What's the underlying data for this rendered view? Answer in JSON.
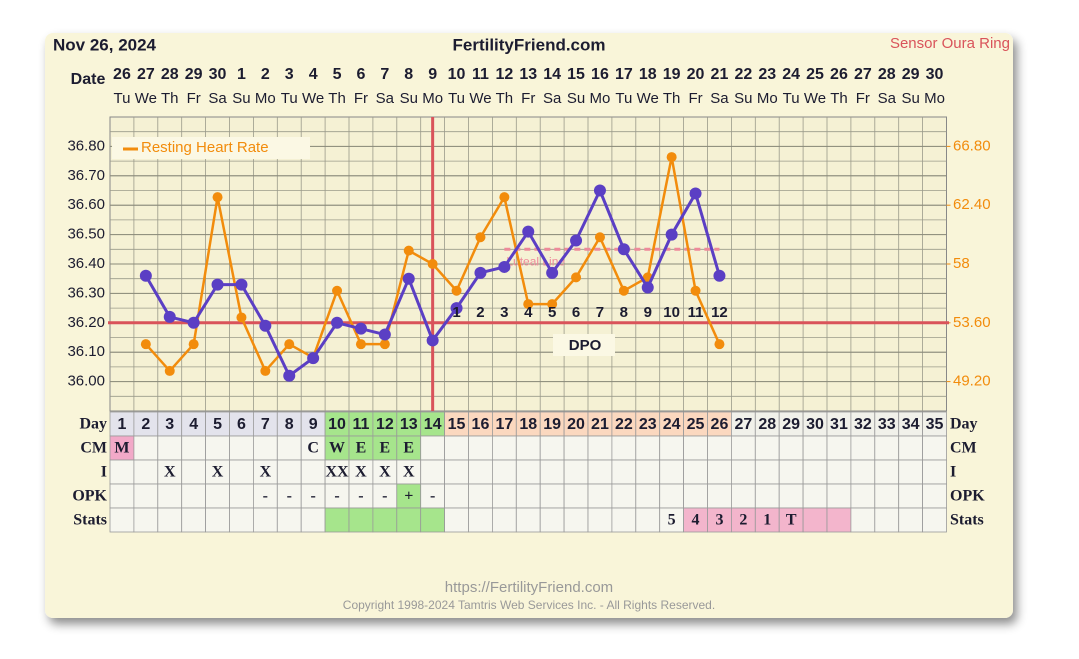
{
  "header": {
    "date": "Nov 26, 2024",
    "sensor": "Sensor Oura Ring"
  },
  "chart_data": {
    "type": "line",
    "title": "FertilityFriend.com",
    "x_label": "Date",
    "dates": [
      26,
      27,
      28,
      29,
      30,
      1,
      2,
      3,
      4,
      5,
      6,
      7,
      8,
      9,
      10,
      11,
      12,
      13,
      14,
      15,
      16,
      17,
      18,
      19,
      20,
      21,
      22,
      23,
      24,
      25,
      26,
      27,
      28,
      29,
      30
    ],
    "weekdays": [
      "Tu",
      "We",
      "Th",
      "Fr",
      "Sa",
      "Su",
      "Mo",
      "Tu",
      "We",
      "Th",
      "Fr",
      "Sa",
      "Su",
      "Mo",
      "Tu",
      "We",
      "Th",
      "Fr",
      "Sa",
      "Su",
      "Mo",
      "Tu",
      "We",
      "Th",
      "Fr",
      "Sa",
      "Su",
      "Mo",
      "Tu",
      "We",
      "Th",
      "Fr",
      "Sa",
      "Su",
      "Mo"
    ],
    "ylim": [
      35.9,
      36.9
    ],
    "yticks": [
      {
        "value": 36.0,
        "label": "36.00"
      },
      {
        "value": 36.1,
        "label": "36.10"
      },
      {
        "value": 36.2,
        "label": "36.20"
      },
      {
        "value": 36.3,
        "label": "36.30"
      },
      {
        "value": 36.4,
        "label": "36.40"
      },
      {
        "value": 36.5,
        "label": "36.50"
      },
      {
        "value": 36.6,
        "label": "36.60"
      },
      {
        "value": 36.7,
        "label": "36.70"
      },
      {
        "value": 36.8,
        "label": "36.80"
      }
    ],
    "y2lim": [
      47,
      69
    ],
    "y2ticks": [
      {
        "value": 49.2,
        "label": "49.20"
      },
      {
        "value": 53.6,
        "label": "53.60"
      },
      58,
      {
        "value": 62.4,
        "label": "62.40"
      },
      {
        "value": 66.8,
        "label": "66.80"
      }
    ],
    "series": [
      {
        "color": "#5b3fc4",
        "values": [
          null,
          36.36,
          36.22,
          36.2,
          36.33,
          36.33,
          36.19,
          36.02,
          36.08,
          36.2,
          36.18,
          36.16,
          36.35,
          36.14,
          36.25,
          36.37,
          36.39,
          36.51,
          36.37,
          36.48,
          36.65,
          36.45,
          36.32,
          36.5,
          36.64,
          36.36,
          null,
          null,
          null,
          null,
          null,
          null,
          null,
          null,
          null
        ]
      },
      {
        "name": "Resting Heart Rate",
        "color": "#f28c0c",
        "axis": "y2",
        "values": [
          null,
          52,
          50,
          52,
          63,
          54,
          50,
          52,
          51,
          56,
          52,
          52,
          59,
          58,
          56,
          60,
          63,
          55,
          55,
          57,
          60,
          56,
          57,
          66,
          56,
          52,
          null,
          null,
          null,
          null,
          null,
          null,
          null,
          null,
          null
        ]
      }
    ],
    "coverline": {
      "value": 36.2,
      "color": "#d9535a"
    },
    "ovulation_day": 14,
    "luteal_line": {
      "label": "Luteal Line",
      "value": 36.45,
      "from": 17,
      "to": 26,
      "color": "#ee8a9a"
    },
    "dpo_label": "DPO",
    "dpo": [
      null,
      null,
      null,
      null,
      null,
      null,
      null,
      null,
      null,
      null,
      null,
      null,
      null,
      null,
      1,
      2,
      3,
      4,
      5,
      6,
      7,
      8,
      9,
      10,
      11,
      12,
      null,
      null,
      null,
      null,
      null,
      null,
      null,
      null,
      null
    ],
    "legend": "upper left",
    "grid": true
  },
  "table": {
    "rows": [
      {
        "label": "Day",
        "cells": [
          1,
          2,
          3,
          4,
          5,
          6,
          7,
          8,
          9,
          10,
          11,
          12,
          13,
          14,
          15,
          16,
          17,
          18,
          19,
          20,
          21,
          22,
          23,
          24,
          25,
          26,
          27,
          28,
          29,
          30,
          31,
          32,
          33,
          34,
          35
        ],
        "fills": [
          {
            "from": 1,
            "to": 9,
            "color": "#e3e3ec"
          },
          {
            "from": 10,
            "to": 14,
            "color": "#a6e58c"
          },
          {
            "from": 15,
            "to": 26,
            "color": "#fbd8bf"
          },
          {
            "from": 27,
            "to": 35,
            "color": "#f1f1ea"
          }
        ]
      },
      {
        "label": "CM",
        "cells": [
          "M",
          null,
          null,
          null,
          null,
          null,
          null,
          null,
          "C",
          "W",
          "E",
          "E",
          "E",
          null,
          null,
          null,
          null,
          null,
          null,
          null,
          null,
          null,
          null,
          null,
          null,
          null,
          null,
          null,
          null,
          null,
          null,
          null,
          null,
          null,
          null
        ],
        "fills": [
          {
            "from": 1,
            "to": 1,
            "color": "#f2a9c8"
          },
          {
            "from": 10,
            "to": 13,
            "color": "#a6e58c"
          }
        ]
      },
      {
        "label": "I",
        "cells": [
          null,
          null,
          "X",
          null,
          "X",
          null,
          "X",
          null,
          null,
          "XX",
          "X",
          "X",
          "X",
          null,
          null,
          null,
          null,
          null,
          null,
          null,
          null,
          null,
          null,
          null,
          null,
          null,
          null,
          null,
          null,
          null,
          null,
          null,
          null,
          null,
          null
        ],
        "fills": []
      },
      {
        "label": "OPK",
        "cells": [
          null,
          null,
          null,
          null,
          null,
          null,
          "-",
          "-",
          "-",
          "-",
          "-",
          "-",
          "+",
          "-",
          null,
          null,
          null,
          null,
          null,
          null,
          null,
          null,
          null,
          null,
          null,
          null,
          null,
          null,
          null,
          null,
          null,
          null,
          null,
          null,
          null
        ],
        "fills": [
          {
            "from": 13,
            "to": 13,
            "color": "#a6e58c"
          }
        ]
      },
      {
        "label": "Stats",
        "cells": [
          null,
          null,
          null,
          null,
          null,
          null,
          null,
          null,
          null,
          null,
          null,
          null,
          null,
          null,
          null,
          null,
          null,
          null,
          null,
          null,
          null,
          null,
          null,
          5,
          4,
          3,
          2,
          1,
          "T",
          null,
          null,
          null,
          null,
          null,
          null
        ],
        "fills": [
          {
            "from": 10,
            "to": 14,
            "color": "#a6e58c"
          },
          {
            "from": 25,
            "to": 31,
            "color": "#f3b5cc"
          }
        ]
      }
    ]
  },
  "footer": {
    "url": "https://FertilityFriend.com",
    "copyright": "Copyright 1998-2024 Tamtris Web Services Inc. - All Rights Reserved."
  }
}
